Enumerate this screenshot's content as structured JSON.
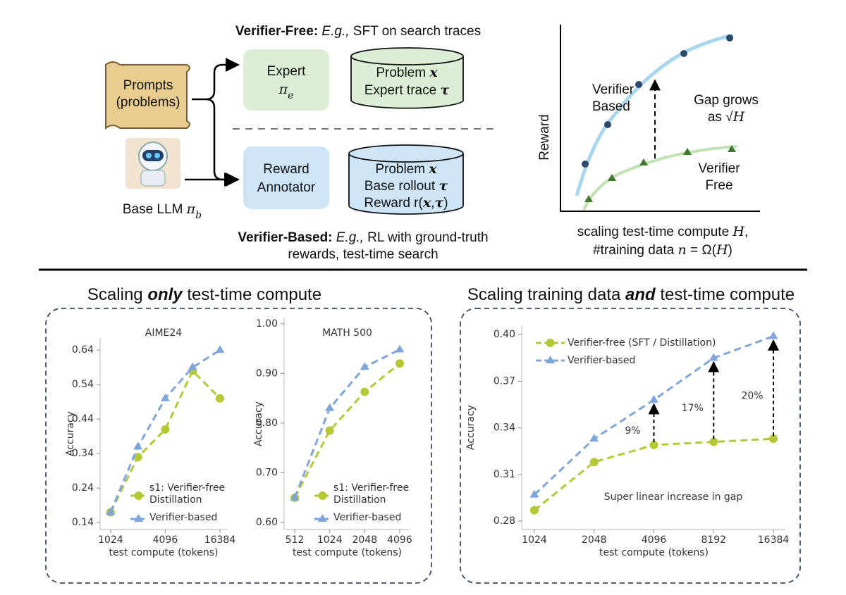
{
  "diagram": {
    "top_caption": [
      "Verifier-Free:",
      " E.g.,",
      " SFT on search traces"
    ],
    "prompts": [
      "Prompts",
      "(problems)"
    ],
    "base_llm": [
      "Base LLM ",
      "π",
      "b"
    ],
    "expert": [
      "Expert",
      "π",
      "e"
    ],
    "expert_store": [
      [
        "Problem ",
        "x"
      ],
      [
        "Expert trace ",
        "τ"
      ]
    ],
    "annotator": [
      "Reward",
      "Annotator"
    ],
    "annotator_store": [
      [
        "Problem ",
        "x"
      ],
      [
        "Base rollout ",
        "τ"
      ],
      [
        "Reward r(",
        "x",
        ",",
        "τ",
        ")"
      ]
    ],
    "bottom_caption": [
      [
        "Verifier-Based:",
        " E.g.,",
        " RL with ground-truth"
      ],
      "rewards, test-time search"
    ]
  },
  "concept": {
    "ylabel": "Reward",
    "based": [
      "Verifier",
      "Based"
    ],
    "gap": [
      [
        "Gap grows"
      ],
      [
        "as √",
        "H"
      ]
    ],
    "free": [
      "Verifier",
      "Free"
    ],
    "xlabel": [
      [
        "scaling test-time compute ",
        "H",
        ","
      ],
      [
        "#training data ",
        "n",
        " = Ω(",
        "H",
        ")"
      ]
    ]
  },
  "section_titles": [
    [
      "Scaling ",
      "only",
      " test-time compute"
    ],
    [
      "Scaling training data ",
      "and",
      " test-time compute"
    ]
  ],
  "chart_data": [
    {
      "type": "line",
      "title": "AIME24",
      "xlabel": "test compute (tokens)",
      "ylabel": "Accuracy",
      "xscale": "log",
      "x": [
        1024,
        2048,
        4096,
        8192,
        16384
      ],
      "xlim": [
        785,
        19600
      ],
      "xticks": [
        1024,
        4096,
        16384
      ],
      "ylim": [
        0.12,
        0.675
      ],
      "yticks": [
        0.14,
        0.24,
        0.34,
        0.44,
        0.54,
        0.64
      ],
      "legend": "lower right",
      "series": [
        {
          "name": "s1: Verifier-free Distillation",
          "color": "#b5c834",
          "marker": "circle",
          "values": [
            0.17,
            0.33,
            0.41,
            0.58,
            0.5
          ]
        },
        {
          "name": "Verifier-based",
          "color": "#7fa6dc",
          "marker": "triangle",
          "values": [
            0.17,
            0.36,
            0.5,
            0.59,
            0.64
          ]
        }
      ]
    },
    {
      "type": "line",
      "title": "MATH 500",
      "xlabel": "test compute (tokens)",
      "ylabel": "Accuracy",
      "xscale": "log",
      "x": [
        512,
        1024,
        2048,
        4096
      ],
      "xlim": [
        415,
        5055
      ],
      "xticks": [
        512,
        1024,
        2048,
        4096
      ],
      "ylim": [
        0.586,
        1.011
      ],
      "yticks": [
        {
          "value": 0.6,
          "label": "0.60"
        },
        {
          "value": 0.7,
          "label": "0.70"
        },
        {
          "value": 0.8,
          "label": "0.80"
        },
        {
          "value": 0.9,
          "label": "0.90"
        },
        {
          "value": 1,
          "label": "1.00"
        }
      ],
      "legend": "lower right",
      "series": [
        {
          "name": "s1: Verifier-free Distillation",
          "color": "#b5c834",
          "marker": "circle",
          "values": [
            0.65,
            0.785,
            0.863,
            0.92
          ]
        },
        {
          "name": "Verifier-based",
          "color": "#7fa6dc",
          "marker": "triangle",
          "values": [
            0.65,
            0.83,
            0.913,
            0.948
          ]
        }
      ]
    },
    {
      "type": "line",
      "xlabel": "test compute (tokens)",
      "ylabel": "Accuracy",
      "xscale": "log",
      "x": [
        1024,
        2048,
        4096,
        8192,
        16384
      ],
      "xlim": [
        884,
        18975
      ],
      "xticks": [
        1024,
        2048,
        4096,
        8192,
        16384
      ],
      "ylim": [
        0.2746,
        0.406
      ],
      "yticks": [
        0.28,
        0.31,
        0.34,
        0.37,
        {
          "value": 0.4,
          "label": "0.40"
        }
      ],
      "legend": "upper left",
      "series": [
        {
          "name": "Verifier-free (SFT / Distillation)",
          "color": "#b5c834",
          "marker": "circle",
          "values": [
            0.287,
            0.318,
            0.329,
            0.331,
            0.333
          ]
        },
        {
          "name": "Verifier-based",
          "color": "#7fa6dc",
          "marker": "triangle",
          "values": [
            0.297,
            0.333,
            0.358,
            0.385,
            0.399
          ]
        }
      ],
      "annotations": [
        {
          "text": "9%",
          "x": 4096
        },
        {
          "text": "17%",
          "x": 8192
        },
        {
          "text": "20%",
          "x": 16384
        }
      ],
      "note": "Super linear increase in gap"
    }
  ]
}
